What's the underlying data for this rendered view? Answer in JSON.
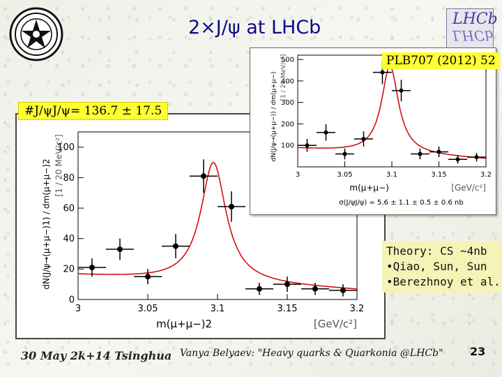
{
  "slide": {
    "title": "2×J/ψ at LHCb",
    "reference": "PLB707 (2012) 52",
    "count_label": "#J/ψJ/ψ= 136.7 ± 17.5",
    "theory": [
      "Theory: CS ~4nb",
      "•Qiao, Sun, Sun",
      "•Berezhnoy et al."
    ],
    "footer_left": "30 May 2k+14 Tsinghua",
    "footer_mid": "Vanya Belyaev: \"Heavy quarks & Quarkonia @LHCb\"",
    "page_number": "23",
    "logo_text": "LHCb"
  },
  "chart_data": [
    {
      "type": "scatter",
      "title": "",
      "xlabel": "m(μ+μ−)2",
      "xunit": "[GeV/c²]",
      "ylabel": "dN(J/ψ→(μ+μ−)1) / dm(μ+μ−)2",
      "yunit": "[1 / 20 MeV/c²]",
      "xlim": [
        3.0,
        3.2
      ],
      "ylim": [
        0,
        110
      ],
      "xticks": [
        "3",
        "3.05",
        "3.1",
        "3.15",
        "3.2"
      ],
      "yticks": [
        "0",
        "20",
        "40",
        "60",
        "80",
        "100"
      ],
      "points": [
        {
          "x": 3.01,
          "y": 21,
          "err": 6
        },
        {
          "x": 3.03,
          "y": 33,
          "err": 7
        },
        {
          "x": 3.05,
          "y": 15,
          "err": 5
        },
        {
          "x": 3.07,
          "y": 35,
          "err": 8
        },
        {
          "x": 3.09,
          "y": 81,
          "err": 11
        },
        {
          "x": 3.11,
          "y": 61,
          "err": 10
        },
        {
          "x": 3.13,
          "y": 7,
          "err": 4
        },
        {
          "x": 3.15,
          "y": 10,
          "err": 5
        },
        {
          "x": 3.17,
          "y": 7,
          "err": 4
        },
        {
          "x": 3.19,
          "y": 6,
          "err": 4
        }
      ],
      "fit": {
        "peak_x": 3.097,
        "peak_y": 90,
        "width": 0.011,
        "background": [
          16,
          6
        ]
      }
    },
    {
      "type": "scatter",
      "title": "",
      "xlabel": "m(μ+μ−)",
      "xunit": "[GeV/c²]",
      "ylabel": "dN(J/ψ→(μ+μ−)) / dm(μ+μ−)",
      "yunit": "[1 / 20 MeV/c²]",
      "xlim": [
        3.0,
        3.2
      ],
      "ylim": [
        0,
        520
      ],
      "xticks": [
        "3",
        "3.05",
        "3.1",
        "3.15",
        "3.2"
      ],
      "yticks": [
        "100",
        "200",
        "300",
        "400",
        "500"
      ],
      "points": [
        {
          "x": 3.01,
          "y": 100,
          "err": 30
        },
        {
          "x": 3.03,
          "y": 160,
          "err": 38
        },
        {
          "x": 3.05,
          "y": 60,
          "err": 25
        },
        {
          "x": 3.07,
          "y": 130,
          "err": 35
        },
        {
          "x": 3.09,
          "y": 440,
          "err": 55
        },
        {
          "x": 3.11,
          "y": 355,
          "err": 50
        },
        {
          "x": 3.13,
          "y": 60,
          "err": 25
        },
        {
          "x": 3.15,
          "y": 70,
          "err": 25
        },
        {
          "x": 3.17,
          "y": 35,
          "err": 20
        },
        {
          "x": 3.19,
          "y": 45,
          "err": 20
        }
      ],
      "fit": {
        "peak_x": 3.098,
        "peak_y": 470,
        "width": 0.011,
        "background": [
          85,
          35
        ]
      },
      "caption": "σ(J/ψJ/ψ) = 5.6 ± 1.1 ± 0.5 ± 0.6 nb"
    }
  ]
}
